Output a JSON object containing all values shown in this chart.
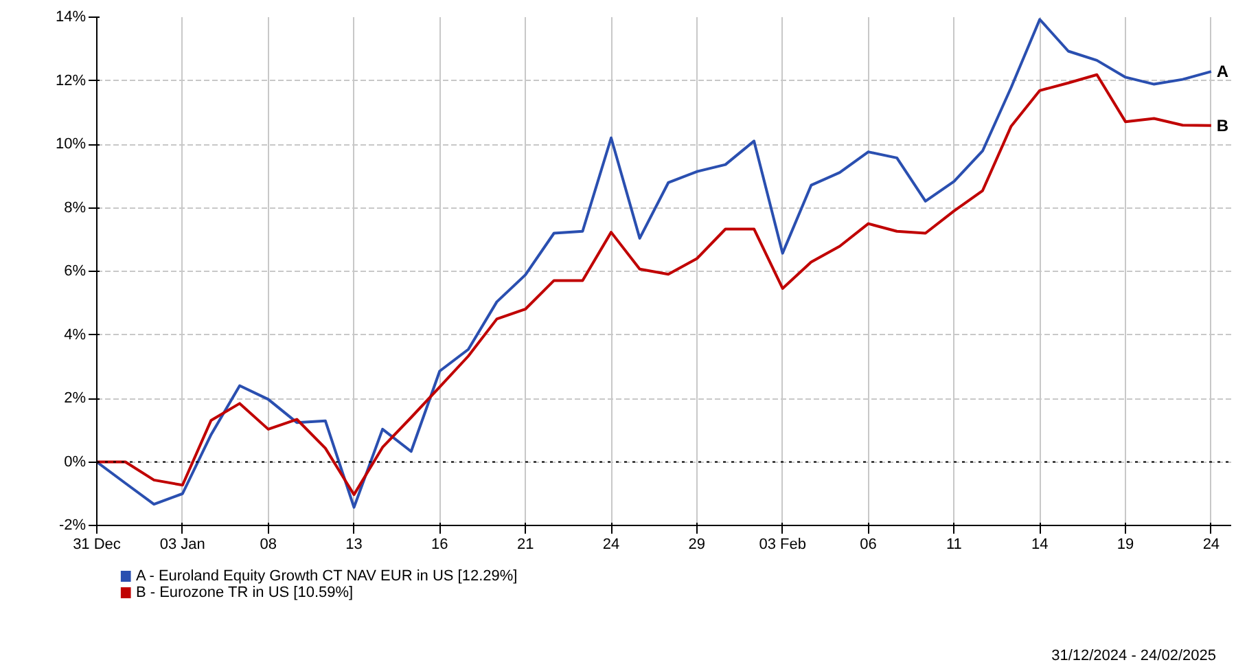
{
  "chart_data": {
    "type": "line",
    "categories": [
      "31 Dec",
      null,
      null,
      "03 Jan",
      null,
      null,
      "08",
      null,
      null,
      "13",
      null,
      null,
      "16",
      null,
      null,
      "21",
      null,
      null,
      "24",
      null,
      null,
      "29",
      null,
      null,
      "03 Feb",
      null,
      null,
      "06",
      null,
      null,
      "11",
      null,
      null,
      "14",
      null,
      null,
      "19",
      null,
      null,
      "24"
    ],
    "series": [
      {
        "name": "A - Euroland Equity Growth CT NAV EUR in US [12.29%]",
        "color": "#2a4fb0",
        "values": [
          0,
          -0.67,
          -1.33,
          -1.0,
          0.86,
          2.4,
          1.97,
          1.24,
          1.29,
          -1.43,
          1.03,
          0.33,
          2.86,
          3.54,
          5.04,
          5.89,
          7.2,
          7.26,
          10.2,
          7.04,
          8.79,
          9.14,
          9.36,
          10.1,
          6.57,
          8.71,
          9.11,
          9.76,
          9.57,
          8.21,
          8.83,
          9.79,
          11.79,
          13.93,
          12.93,
          12.64,
          12.11,
          11.89,
          12.04,
          12.29
        ]
      },
      {
        "name": "B - Eurozone TR in US [10.59%]",
        "color": "#c00000",
        "values": [
          0,
          0,
          -0.57,
          -0.73,
          1.31,
          1.84,
          1.03,
          1.34,
          0.43,
          -1.03,
          0.46,
          1.4,
          2.36,
          3.33,
          4.5,
          4.81,
          5.71,
          5.71,
          7.23,
          6.07,
          5.91,
          6.4,
          7.33,
          7.33,
          5.46,
          6.29,
          6.79,
          7.5,
          7.26,
          7.2,
          7.9,
          8.54,
          10.57,
          11.69,
          11.93,
          12.19,
          10.71,
          10.81,
          10.6,
          10.59
        ]
      }
    ],
    "ylim": [
      -2,
      14
    ],
    "yticks": [
      {
        "value": -2,
        "label": "-2%"
      },
      {
        "value": 0,
        "label": "0%"
      },
      {
        "value": 2,
        "label": "2%"
      },
      {
        "value": 4,
        "label": "4%"
      },
      {
        "value": 6,
        "label": "6%"
      },
      {
        "value": 8,
        "label": "8%"
      },
      {
        "value": 10,
        "label": "10%"
      },
      {
        "value": 12,
        "label": "12%"
      },
      {
        "value": 14,
        "label": "14%"
      }
    ],
    "ref_lines": [
      {
        "axis": "y",
        "value": 0,
        "color": "#000000",
        "line_style": "dotted"
      }
    ],
    "annotations": [
      "A",
      "B",
      "31/12/2024 - 24/02/2025"
    ],
    "grid": true,
    "legend": "bottom",
    "marker": "none",
    "line_style": "solid"
  }
}
